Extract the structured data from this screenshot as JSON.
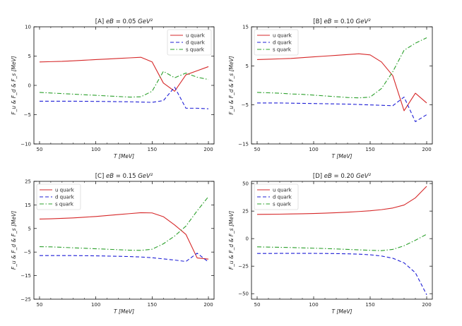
{
  "chart_data": [
    {
      "type": "line",
      "title": "[A] eB = 0.05 GeV²",
      "xlabel": "T [MeV]",
      "ylabel": "F_u & F_d & F_s [MeV]",
      "xlim": [
        45,
        205
      ],
      "ylim": [
        -10,
        10
      ],
      "xticks": [
        50,
        100,
        150,
        200
      ],
      "yticks": [
        -10,
        -5,
        0,
        5,
        10
      ],
      "legend": "top-right",
      "series": [
        {
          "name": "u quark",
          "color": "#d62728",
          "dash": "solid",
          "x": [
            50,
            60,
            70,
            80,
            90,
            100,
            110,
            120,
            130,
            140,
            150,
            160,
            170,
            180,
            190,
            200
          ],
          "y": [
            4.0,
            4.05,
            4.1,
            4.2,
            4.3,
            4.4,
            4.5,
            4.6,
            4.7,
            4.8,
            4.0,
            0.4,
            -1.0,
            1.8,
            2.5,
            3.2
          ]
        },
        {
          "name": "d quark",
          "color": "#1f1fd6",
          "dash": "dashed",
          "x": [
            50,
            60,
            70,
            80,
            90,
            100,
            110,
            120,
            130,
            140,
            150,
            160,
            170,
            180,
            190,
            200
          ],
          "y": [
            -2.7,
            -2.7,
            -2.7,
            -2.7,
            -2.72,
            -2.73,
            -2.75,
            -2.78,
            -2.8,
            -2.85,
            -2.9,
            -2.6,
            -0.3,
            -3.9,
            -3.9,
            -4.0
          ]
        },
        {
          "name": "s quark",
          "color": "#2ca02c",
          "dash": "dashdot",
          "x": [
            50,
            60,
            70,
            80,
            90,
            100,
            110,
            120,
            130,
            140,
            150,
            160,
            170,
            180,
            190,
            200
          ],
          "y": [
            -1.2,
            -1.3,
            -1.4,
            -1.5,
            -1.6,
            -1.7,
            -1.8,
            -1.9,
            -2.0,
            -1.95,
            -1.0,
            2.4,
            1.3,
            2.1,
            1.4,
            1.0
          ]
        }
      ]
    },
    {
      "type": "line",
      "title": "[B] eB = 0.10 GeV²",
      "xlabel": "T [MeV]",
      "ylabel": "F_u & F_d & F_s [MeV]",
      "xlim": [
        45,
        205
      ],
      "ylim": [
        -15,
        15
      ],
      "xticks": [
        50,
        100,
        150,
        200
      ],
      "yticks": [
        -15,
        -5,
        5,
        15
      ],
      "legend": "top-left",
      "series": [
        {
          "name": "u quark",
          "color": "#d62728",
          "dash": "solid",
          "x": [
            50,
            60,
            70,
            80,
            90,
            100,
            110,
            120,
            130,
            140,
            150,
            160,
            170,
            180,
            190,
            200
          ],
          "y": [
            6.6,
            6.7,
            6.8,
            6.9,
            7.1,
            7.3,
            7.5,
            7.7,
            7.9,
            8.1,
            7.8,
            6.0,
            2.5,
            -6.5,
            -2.0,
            -4.5
          ]
        },
        {
          "name": "d quark",
          "color": "#1f1fd6",
          "dash": "dashed",
          "x": [
            50,
            60,
            70,
            80,
            90,
            100,
            110,
            120,
            130,
            140,
            150,
            160,
            170,
            180,
            190,
            200
          ],
          "y": [
            -4.5,
            -4.5,
            -4.5,
            -4.55,
            -4.6,
            -4.65,
            -4.7,
            -4.75,
            -4.8,
            -4.9,
            -5.0,
            -5.1,
            -5.2,
            -3.0,
            -9.3,
            -7.5
          ]
        },
        {
          "name": "s quark",
          "color": "#2ca02c",
          "dash": "dashdot",
          "x": [
            50,
            60,
            70,
            80,
            90,
            100,
            110,
            120,
            130,
            140,
            150,
            160,
            170,
            180,
            190,
            200
          ],
          "y": [
            -1.8,
            -1.9,
            -2.0,
            -2.2,
            -2.3,
            -2.5,
            -2.7,
            -2.9,
            -3.1,
            -3.2,
            -3.0,
            -0.8,
            3.5,
            9.0,
            10.8,
            12.2
          ]
        }
      ]
    },
    {
      "type": "line",
      "title": "[C] eB = 0.15 GeV²",
      "xlabel": "T [MeV]",
      "ylabel": "F_u & F_d & F_s [MeV]",
      "xlim": [
        45,
        205
      ],
      "ylim": [
        -25,
        25
      ],
      "xticks": [
        50,
        100,
        150,
        200
      ],
      "yticks": [
        -25,
        -15,
        -5,
        5,
        15,
        25
      ],
      "legend": "top-left",
      "series": [
        {
          "name": "u quark",
          "color": "#d62728",
          "dash": "solid",
          "x": [
            50,
            60,
            70,
            80,
            90,
            100,
            110,
            120,
            130,
            140,
            150,
            160,
            170,
            180,
            190,
            200
          ],
          "y": [
            9.0,
            9.1,
            9.3,
            9.5,
            9.8,
            10.1,
            10.5,
            10.9,
            11.3,
            11.7,
            11.6,
            10.0,
            6.5,
            2.5,
            -7.5,
            -8.0
          ]
        },
        {
          "name": "d quark",
          "color": "#1f1fd6",
          "dash": "dashed",
          "x": [
            50,
            60,
            70,
            80,
            90,
            100,
            110,
            120,
            130,
            140,
            150,
            160,
            170,
            180,
            190,
            200
          ],
          "y": [
            -6.5,
            -6.5,
            -6.5,
            -6.5,
            -6.55,
            -6.6,
            -6.7,
            -6.8,
            -6.9,
            -7.1,
            -7.4,
            -7.9,
            -8.4,
            -9.0,
            -5.5,
            -9.2
          ]
        },
        {
          "name": "s quark",
          "color": "#2ca02c",
          "dash": "dashdot",
          "x": [
            50,
            60,
            70,
            80,
            90,
            100,
            110,
            120,
            130,
            140,
            150,
            160,
            170,
            180,
            190,
            200
          ],
          "y": [
            -2.7,
            -2.8,
            -3.0,
            -3.2,
            -3.4,
            -3.6,
            -3.8,
            -4.0,
            -4.2,
            -4.3,
            -3.8,
            -1.5,
            1.8,
            6.0,
            12.5,
            18.5
          ]
        }
      ]
    },
    {
      "type": "line",
      "title": "[D] eB = 0.20 GeV²",
      "xlabel": "T [MeV]",
      "ylabel": "F_u & F_d & F_s [MeV]",
      "xlim": [
        45,
        205
      ],
      "ylim": [
        -55,
        52
      ],
      "xticks": [
        50,
        100,
        150,
        200
      ],
      "yticks": [
        -50,
        -25,
        0,
        25,
        50
      ],
      "legend": "top-left",
      "series": [
        {
          "name": "u quark",
          "color": "#d62728",
          "dash": "solid",
          "x": [
            50,
            60,
            70,
            80,
            90,
            100,
            110,
            120,
            130,
            140,
            150,
            160,
            170,
            180,
            190,
            200
          ],
          "y": [
            22.0,
            22.1,
            22.2,
            22.4,
            22.6,
            22.8,
            23.1,
            23.5,
            24.0,
            24.6,
            25.3,
            26.3,
            27.8,
            30.5,
            37.0,
            47.5
          ]
        },
        {
          "name": "d quark",
          "color": "#1f1fd6",
          "dash": "dashed",
          "x": [
            50,
            60,
            70,
            80,
            90,
            100,
            110,
            120,
            130,
            140,
            150,
            160,
            170,
            180,
            190,
            200
          ],
          "y": [
            -13.5,
            -13.5,
            -13.4,
            -13.4,
            -13.4,
            -13.4,
            -13.5,
            -13.6,
            -13.8,
            -14.1,
            -14.7,
            -15.8,
            -17.8,
            -22.0,
            -31.0,
            -51.0
          ]
        },
        {
          "name": "s quark",
          "color": "#2ca02c",
          "dash": "dashdot",
          "x": [
            50,
            60,
            70,
            80,
            90,
            100,
            110,
            120,
            130,
            140,
            150,
            160,
            170,
            180,
            190,
            200
          ],
          "y": [
            -7.5,
            -7.7,
            -7.9,
            -8.1,
            -8.4,
            -8.7,
            -9.0,
            -9.4,
            -9.8,
            -10.2,
            -10.6,
            -10.9,
            -9.8,
            -6.5,
            -1.5,
            4.0
          ]
        }
      ]
    }
  ]
}
